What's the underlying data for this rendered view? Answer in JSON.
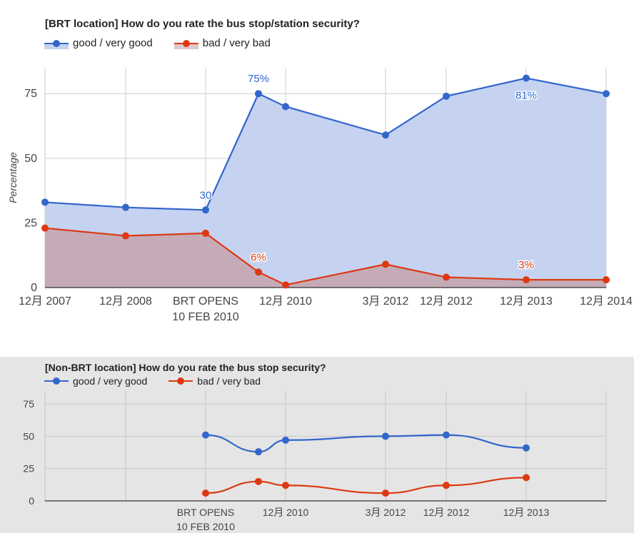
{
  "colors": {
    "good": "#3366cc",
    "good_fill": "#c2d1f0",
    "bad": "#dc3912",
    "bad_fill": "#c4a3ad"
  },
  "chart_data": [
    {
      "type": "area",
      "title": "[BRT location] How do you rate the bus stop/station security?",
      "ylabel": "Percentage",
      "ylim": [
        0,
        80
      ],
      "yticks": [
        0,
        25,
        50,
        75
      ],
      "grid": true,
      "legend_position": "top",
      "categories": [
        "12月 2007",
        "12月 2008",
        "BRT OPENS\n10 FEB 2010",
        "",
        "12月 2010",
        "3月 2012",
        "12月 2012",
        "12月 2013",
        "12月 2014"
      ],
      "x_labels": [
        "12月 2007",
        "12月 2008",
        "BRT OPENS|10 FEB 2010",
        "12月 2010",
        "3月 2012",
        "12月 2012",
        "12月 2013",
        "12月 2014"
      ],
      "series": [
        {
          "name": "good / very good",
          "values": [
            33,
            31,
            30,
            75,
            70,
            59,
            74,
            81,
            75
          ]
        },
        {
          "name": "bad / very bad",
          "values": [
            23,
            20,
            21,
            6,
            1,
            9,
            4,
            3,
            3
          ]
        }
      ],
      "annotations": [
        {
          "series": 0,
          "index": 3,
          "text": "75%"
        },
        {
          "series": 0,
          "index": 2,
          "text": "30"
        },
        {
          "series": 0,
          "index": 7,
          "text": "81%"
        },
        {
          "series": 1,
          "index": 3,
          "text": "6%"
        },
        {
          "series": 1,
          "index": 7,
          "text": "3%"
        }
      ]
    },
    {
      "type": "line",
      "title": "[Non-BRT location] How do you rate the bus stop security?",
      "ylim": [
        0,
        80
      ],
      "yticks": [
        0,
        25,
        50,
        75
      ],
      "grid": true,
      "legend_position": "top",
      "categories": [
        "12月 2007",
        "12月 2008",
        "BRT OPENS\n10 FEB 2010",
        "",
        "12月 2010",
        "3月 2012",
        "12月 2012",
        "12月 2013",
        "12月 2014"
      ],
      "x_labels": [
        "BRT OPENS|10 FEB 2010",
        "12月 2010",
        "3月 2012",
        "12月 2012",
        "12月 2013"
      ],
      "series": [
        {
          "name": "good / very good",
          "values": [
            null,
            null,
            51,
            38,
            47,
            50,
            51,
            41,
            null
          ]
        },
        {
          "name": "bad / very bad",
          "values": [
            null,
            null,
            6,
            15,
            12,
            6,
            12,
            18,
            null
          ]
        }
      ]
    }
  ]
}
